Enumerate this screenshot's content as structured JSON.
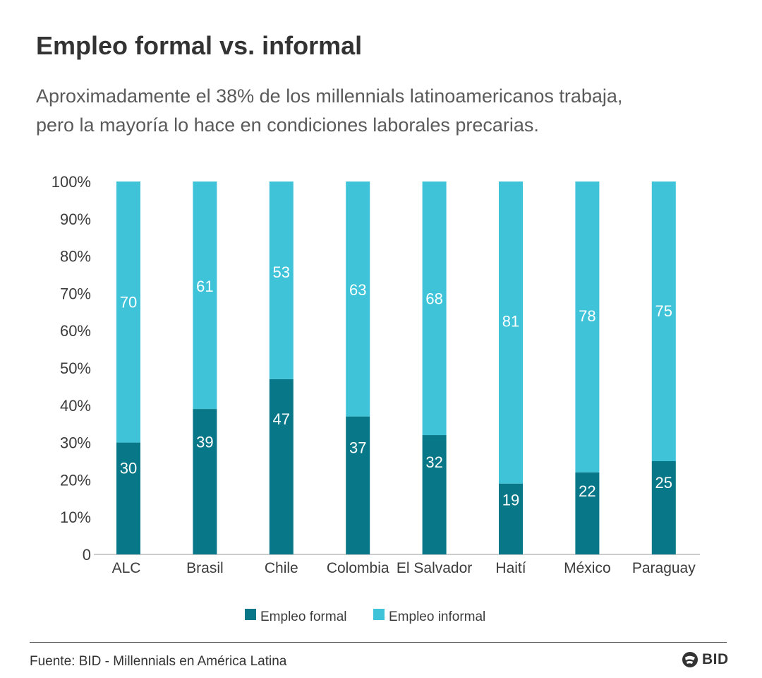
{
  "title": "Empleo formal vs. informal",
  "subtitle_lines": [
    "Aproximadamente el 38% de los millennials latinoamericanos trabaja,",
    "pero la mayoría lo hace en condiciones laborales precarias."
  ],
  "source": "Fuente: BID - Millennials en América Latina",
  "logo_text": "BID",
  "colors": {
    "formal": "#087787",
    "informal": "#3ec3d9"
  },
  "chart_data": {
    "type": "bar",
    "stacked": true,
    "categories": [
      "ALC",
      "Brasil",
      "Chile",
      "Colombia",
      "El Salvador",
      "Haití",
      "México",
      "Paraguay"
    ],
    "series": [
      {
        "name": "Empleo formal",
        "values": [
          30,
          39,
          47,
          37,
          32,
          19,
          22,
          25
        ]
      },
      {
        "name": "Empleo informal",
        "values": [
          70,
          61,
          53,
          63,
          68,
          81,
          78,
          75
        ]
      }
    ],
    "y_ticks": [
      "0",
      "10%",
      "20%",
      "30%",
      "40%",
      "50%",
      "60%",
      "70%",
      "80%",
      "90%",
      "100%"
    ],
    "ylim": [
      0,
      100
    ],
    "grid": false,
    "legend_position": "bottom"
  }
}
